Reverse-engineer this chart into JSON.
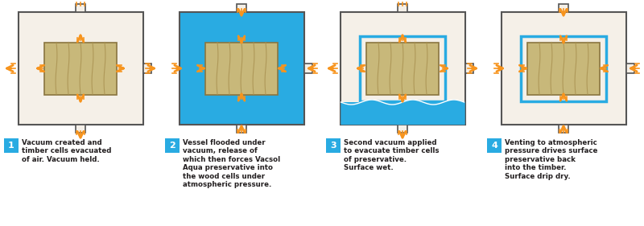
{
  "bg_color": "#f5f0e8",
  "vessel_bg_color": "#f5f0e8",
  "fluid_color": "#29abe2",
  "wood_color": "#c8b87a",
  "wood_grain_color": "#a89050",
  "wood_border_color": "#8a7540",
  "vessel_border_color": "#555555",
  "arrow_color": "#f7941d",
  "label_bg_colors": [
    "#f5f0e8",
    "#29abe2",
    "#f5f0e8",
    "#29abe2"
  ],
  "label_numbers": [
    "1",
    "2",
    "3",
    "4"
  ],
  "label_texts": [
    "Vacuum created and\ntimber cells evacuated\nof air. Vacuum held.",
    "Vessel flooded under\nvacuum, release of\nwhich then forces Vacsol\nAqua preservative into\nthe wood cells under\natmospheric pressure.",
    "Second vacuum applied\nto evacuate timber cells\nof preservative.\nSurface wet.",
    "Venting to atmospheric\npressure drives surface\npreservative back\ninto the timber.\nSurface drip dry."
  ],
  "number_bg_color": "#29abe2",
  "text_color": "#231f20",
  "page_bg": "#ffffff"
}
